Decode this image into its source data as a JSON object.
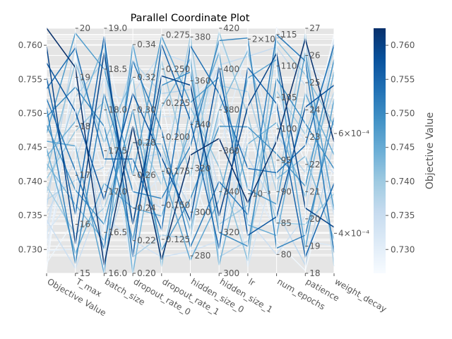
{
  "chart_data": {
    "type": "parallel_coordinates",
    "title": "Parallel Coordinate Plot",
    "axes": [
      {
        "name": "Objective Value",
        "range": [
          0.7265,
          0.7625
        ],
        "ticks": [
          0.73,
          0.735,
          0.74,
          0.745,
          0.75,
          0.755,
          0.76
        ],
        "tick_labels": [
          "0.730",
          "0.735",
          "0.740",
          "0.745",
          "0.750",
          "0.755",
          "0.760"
        ]
      },
      {
        "name": "T_max",
        "range": [
          15,
          20
        ],
        "ticks": [
          15,
          16,
          17,
          18,
          19,
          20
        ],
        "tick_labels": [
          "15",
          "16",
          "17",
          "18",
          "19",
          "20"
        ]
      },
      {
        "name": "batch_size",
        "range": [
          16.0,
          19.0
        ],
        "ticks": [
          16.0,
          16.5,
          17.0,
          17.5,
          18.0,
          18.5,
          19.0
        ],
        "tick_labels": [
          "16.0",
          "16.5",
          "17.0",
          "17.5",
          "18.0",
          "18.5",
          "19.0"
        ]
      },
      {
        "name": "dropout_rate_0",
        "range": [
          0.2,
          0.35
        ],
        "ticks": [
          0.2,
          0.22,
          0.24,
          0.26,
          0.28,
          0.3,
          0.32,
          0.34
        ],
        "tick_labels": [
          "0.20",
          "0.22",
          "0.24",
          "0.26",
          "0.28",
          "0.30",
          "0.32",
          "0.34"
        ]
      },
      {
        "name": "dropout_rate_1",
        "range": [
          0.1,
          0.28
        ],
        "ticks": [
          0.125,
          0.15,
          0.175,
          0.2,
          0.225,
          0.25,
          0.275
        ],
        "tick_labels": [
          "0.125",
          "0.150",
          "0.175",
          "0.200",
          "0.225",
          "0.250",
          "0.275"
        ]
      },
      {
        "name": "hidden_size_0",
        "range": [
          272,
          384
        ],
        "ticks": [
          280,
          300,
          320,
          340,
          360,
          380
        ],
        "tick_labels": [
          "280",
          "300",
          "320",
          "340",
          "360",
          "380"
        ]
      },
      {
        "name": "hidden_size_1",
        "range": [
          300,
          420
        ],
        "ticks": [
          300,
          320,
          340,
          360,
          380,
          400,
          420
        ],
        "tick_labels": [
          "300",
          "320",
          "340",
          "360",
          "380",
          "400",
          "420"
        ]
      },
      {
        "name": "lr",
        "scale": "log",
        "range": [
          0.0007,
          0.0021
        ],
        "ticks": [
          0.001,
          0.002
        ],
        "tick_labels": [
          "10⁻³",
          "2×10⁻³"
        ]
      },
      {
        "name": "num_epochs",
        "range": [
          77,
          116
        ],
        "ticks": [
          80,
          85,
          90,
          95,
          100,
          105,
          110,
          115
        ],
        "tick_labels": [
          "80",
          "85",
          "90",
          "95",
          "100",
          "105",
          "110",
          "115"
        ]
      },
      {
        "name": "patience",
        "range": [
          18,
          27
        ],
        "ticks": [
          18,
          19,
          20,
          21,
          22,
          23,
          24,
          25,
          26,
          27
        ],
        "tick_labels": [
          "18",
          "19",
          "20",
          "21",
          "22",
          "23",
          "24",
          "25",
          "26",
          "27"
        ]
      },
      {
        "name": "weight_decay",
        "scale": "log",
        "range": [
          0.00034,
          0.00092
        ],
        "ticks": [
          0.0004,
          0.0006
        ],
        "tick_labels": [
          "4×10⁻⁴",
          "6×10⁻⁴"
        ]
      }
    ],
    "colorbar": {
      "label": "Objective Value",
      "range": [
        0.7265,
        0.7625
      ],
      "ticks": [
        0.73,
        0.735,
        0.74,
        0.745,
        0.75,
        0.755,
        0.76
      ],
      "tick_labels": [
        "0.730",
        "0.735",
        "0.740",
        "0.745",
        "0.750",
        "0.755",
        "0.760"
      ],
      "colormap": "Blues",
      "color_low": "#f7fbff",
      "color_high": "#08306b"
    },
    "trials": [
      [
        0.7625,
        19.2,
        16.1,
        0.29,
        0.11,
        326,
        366,
        0.00096,
        98,
        26.6,
        0.00058
      ],
      [
        0.7598,
        15.6,
        18.7,
        0.23,
        0.245,
        358,
        328,
        0.00148,
        112,
        20.4,
        0.00041
      ],
      [
        0.7574,
        18.3,
        16.9,
        0.31,
        0.185,
        296,
        401,
        0.00083,
        86,
        24.1,
        0.00073
      ],
      [
        0.7552,
        16.2,
        18.9,
        0.21,
        0.268,
        342,
        312,
        0.00176,
        104,
        18.6,
        0.00049
      ],
      [
        0.7536,
        19.6,
        17.4,
        0.27,
        0.132,
        376,
        388,
        0.00112,
        93,
        22.7,
        0.00086
      ],
      [
        0.7521,
        17.1,
        16.3,
        0.33,
        0.205,
        284,
        345,
        0.00091,
        115,
        25.8,
        0.00037
      ],
      [
        0.7508,
        15.2,
        18.2,
        0.25,
        0.155,
        330,
        414,
        0.00201,
        81,
        19.4,
        0.00064
      ],
      [
        0.7495,
        18.8,
        17.8,
        0.22,
        0.238,
        364,
        320,
        0.00079,
        108,
        23.5,
        0.00052
      ],
      [
        0.7483,
        16.7,
        16.6,
        0.3,
        0.117,
        306,
        372,
        0.00135,
        96,
        21.2,
        0.00081
      ],
      [
        0.7471,
        19.9,
        18.5,
        0.26,
        0.274,
        350,
        396,
        0.00102,
        88,
        26.1,
        0.00044
      ],
      [
        0.7459,
        17.6,
        16.0,
        0.34,
        0.176,
        278,
        336,
        0.00168,
        111,
        18.9,
        0.00069
      ],
      [
        0.7448,
        15.4,
        17.1,
        0.24,
        0.142,
        338,
        408,
        0.00087,
        83,
        24.6,
        0.00055
      ],
      [
        0.7437,
        18.1,
        18.8,
        0.2,
        0.222,
        370,
        304,
        0.00125,
        101,
        20.8,
        0.00077
      ],
      [
        0.7426,
        16.4,
        16.4,
        0.28,
        0.195,
        292,
        380,
        0.0019,
        92,
        22.3,
        0.00039
      ],
      [
        0.7415,
        19.3,
        17.6,
        0.32,
        0.105,
        348,
        352,
        0.00074,
        114,
        25.3,
        0.00062
      ],
      [
        0.7404,
        17.9,
        18.1,
        0.23,
        0.256,
        316,
        418,
        0.00142,
        85,
        19.8,
        0.00047
      ],
      [
        0.7393,
        15.8,
        16.8,
        0.29,
        0.165,
        380,
        324,
        0.00095,
        106,
        23.1,
        0.00084
      ],
      [
        0.7383,
        18.6,
        18.6,
        0.21,
        0.128,
        288,
        392,
        0.00158,
        90,
        26.8,
        0.00035
      ],
      [
        0.7373,
        16.9,
        17.3,
        0.33,
        0.232,
        356,
        308,
        0.00081,
        99,
        21.7,
        0.00071
      ],
      [
        0.7363,
        19.7,
        16.2,
        0.27,
        0.188,
        302,
        376,
        0.00118,
        87,
        18.3,
        0.00058
      ],
      [
        0.7353,
        17.3,
        18.4,
        0.25,
        0.148,
        334,
        402,
        0.00185,
        113,
        24.9,
        0.00043
      ],
      [
        0.7343,
        15.1,
        17.0,
        0.31,
        0.262,
        368,
        340,
        0.00089,
        80,
        20.1,
        0.00088
      ],
      [
        0.7334,
        18.4,
        16.7,
        0.22,
        0.112,
        282,
        316,
        0.00131,
        103,
        22.9,
        0.00051
      ],
      [
        0.7325,
        16.6,
        18.3,
        0.3,
        0.215,
        344,
        386,
        0.00072,
        95,
        26.3,
        0.00066
      ],
      [
        0.7316,
        19.1,
        17.7,
        0.24,
        0.172,
        310,
        412,
        0.00163,
        109,
        19.2,
        0.00038
      ],
      [
        0.7307,
        17.7,
        16.5,
        0.34,
        0.138,
        374,
        332,
        0.00105,
        84,
        23.8,
        0.00079
      ],
      [
        0.7298,
        15.5,
        18.0,
        0.2,
        0.248,
        298,
        360,
        0.00195,
        97,
        21.5,
        0.00046
      ],
      [
        0.7289,
        18.9,
        17.2,
        0.28,
        0.198,
        352,
        398,
        0.00085,
        116,
        25.6,
        0.00074
      ],
      [
        0.728,
        16.1,
        18.9,
        0.26,
        0.122,
        320,
        310,
        0.00138,
        82,
        18.1,
        0.00053
      ],
      [
        0.727,
        19.5,
        16.0,
        0.32,
        0.228,
        286,
        384,
        0.00099,
        105,
        22.1,
        0.0009
      ]
    ]
  }
}
